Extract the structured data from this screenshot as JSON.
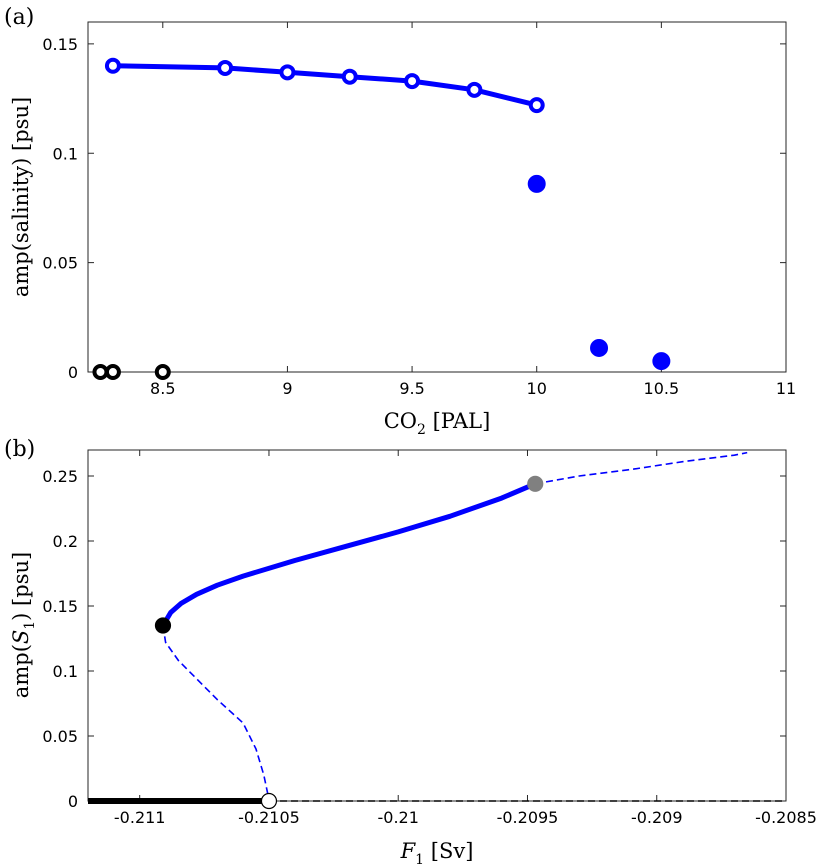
{
  "chart_data": [
    {
      "type": "scatter",
      "panel_label": "(a)",
      "xlabel_main": "CO",
      "xlabel_sub": "2",
      "xlabel_unit": " [PAL]",
      "ylabel": "amp(salinity) [psu]",
      "xlim": [
        8.2,
        11
      ],
      "ylim": [
        0,
        0.16
      ],
      "xticks": [
        8.5,
        9,
        9.5,
        10,
        10.5,
        11
      ],
      "xtick_labels": [
        "8.5",
        "9",
        "9.5",
        "10",
        "10.5",
        "11"
      ],
      "yticks": [
        0,
        0.05,
        0.1,
        0.15
      ],
      "ytick_labels": [
        "0",
        "0.05",
        "0.1",
        "0.15"
      ],
      "series": [
        {
          "name": "stable oscillation branch (open markers with line)",
          "color": "#0000ff",
          "line": true,
          "marker": "open",
          "x": [
            8.3,
            8.75,
            9.0,
            9.25,
            9.5,
            9.75,
            10.0
          ],
          "y": [
            0.14,
            0.139,
            0.137,
            0.135,
            0.133,
            0.129,
            0.122
          ]
        },
        {
          "name": "damped (filled markers)",
          "color": "#0000ff",
          "line": false,
          "marker": "filled",
          "x": [
            10.0,
            10.25,
            10.5
          ],
          "y": [
            0.086,
            0.011,
            0.005
          ]
        },
        {
          "name": "zero amplitude (open markers)",
          "color": "#000000",
          "line": false,
          "marker": "open",
          "x": [
            8.25,
            8.3,
            8.5
          ],
          "y": [
            0.0,
            0.0,
            0.0
          ]
        }
      ]
    },
    {
      "type": "line",
      "panel_label": "(b)",
      "xlabel_main": "F",
      "xlabel_sub": "1",
      "xlabel_unit": " [Sv]",
      "ylabel_main": "amp(",
      "ylabel_var": "S",
      "ylabel_sub": "1",
      "ylabel_tail": ") [psu]",
      "xlim": [
        -0.2112,
        -0.2085
      ],
      "ylim": [
        0,
        0.27
      ],
      "xticks": [
        -0.211,
        -0.2105,
        -0.21,
        -0.2095,
        -0.209,
        -0.2085
      ],
      "xtick_labels": [
        "-0.211",
        "-0.2105",
        "-0.21",
        "-0.2095",
        "-0.209",
        "-0.2085"
      ],
      "yticks": [
        0,
        0.05,
        0.1,
        0.15,
        0.2,
        0.25
      ],
      "ytick_labels": [
        "0",
        "0.05",
        "0.1",
        "0.15",
        "0.2",
        "0.25"
      ],
      "series": [
        {
          "name": "stable periodic orbit branch",
          "color": "#0000ff",
          "style": "solid",
          "x": [
            -0.21091,
            -0.21088,
            -0.21084,
            -0.21078,
            -0.2107,
            -0.2106,
            -0.2104,
            -0.2102,
            -0.21,
            -0.2098,
            -0.2096,
            -0.20947
          ],
          "y": [
            0.135,
            0.145,
            0.152,
            0.159,
            0.166,
            0.173,
            0.185,
            0.196,
            0.207,
            0.219,
            0.233,
            0.244
          ]
        },
        {
          "name": "unstable periodic orbit branch (upper)",
          "color": "#0000ff",
          "style": "dashed",
          "x": [
            -0.20947,
            -0.2093,
            -0.2091,
            -0.2089,
            -0.2087,
            -0.20865
          ],
          "y": [
            0.244,
            0.25,
            0.255,
            0.261,
            0.266,
            0.268
          ]
        },
        {
          "name": "unstable periodic orbit branch (lower)",
          "color": "#0000ff",
          "style": "dashed",
          "x": [
            -0.21091,
            -0.2109,
            -0.21085,
            -0.21078,
            -0.2107,
            -0.2106,
            -0.21055,
            -0.21052,
            -0.2105
          ],
          "y": [
            0.135,
            0.122,
            0.108,
            0.094,
            0.078,
            0.06,
            0.04,
            0.02,
            0.001
          ]
        },
        {
          "name": "stable steady state",
          "color": "#000000",
          "style": "thick",
          "x": [
            -0.2112,
            -0.2105
          ],
          "y": [
            0.0,
            0.0
          ]
        },
        {
          "name": "unstable steady state",
          "color": "#000000",
          "style": "dashed",
          "x": [
            -0.2105,
            -0.2085
          ],
          "y": [
            0.0,
            0.0
          ]
        }
      ],
      "points": [
        {
          "name": "saddle-node of periodic orbits",
          "x": -0.21091,
          "y": 0.135,
          "fill": "#000000",
          "stroke": "#000000"
        },
        {
          "name": "torus bifurcation",
          "x": -0.20947,
          "y": 0.244,
          "fill": "#808080",
          "stroke": "#808080"
        },
        {
          "name": "Hopf bifurcation",
          "x": -0.2105,
          "y": 0.0,
          "fill": "#ffffff",
          "stroke": "#000000"
        }
      ]
    }
  ]
}
